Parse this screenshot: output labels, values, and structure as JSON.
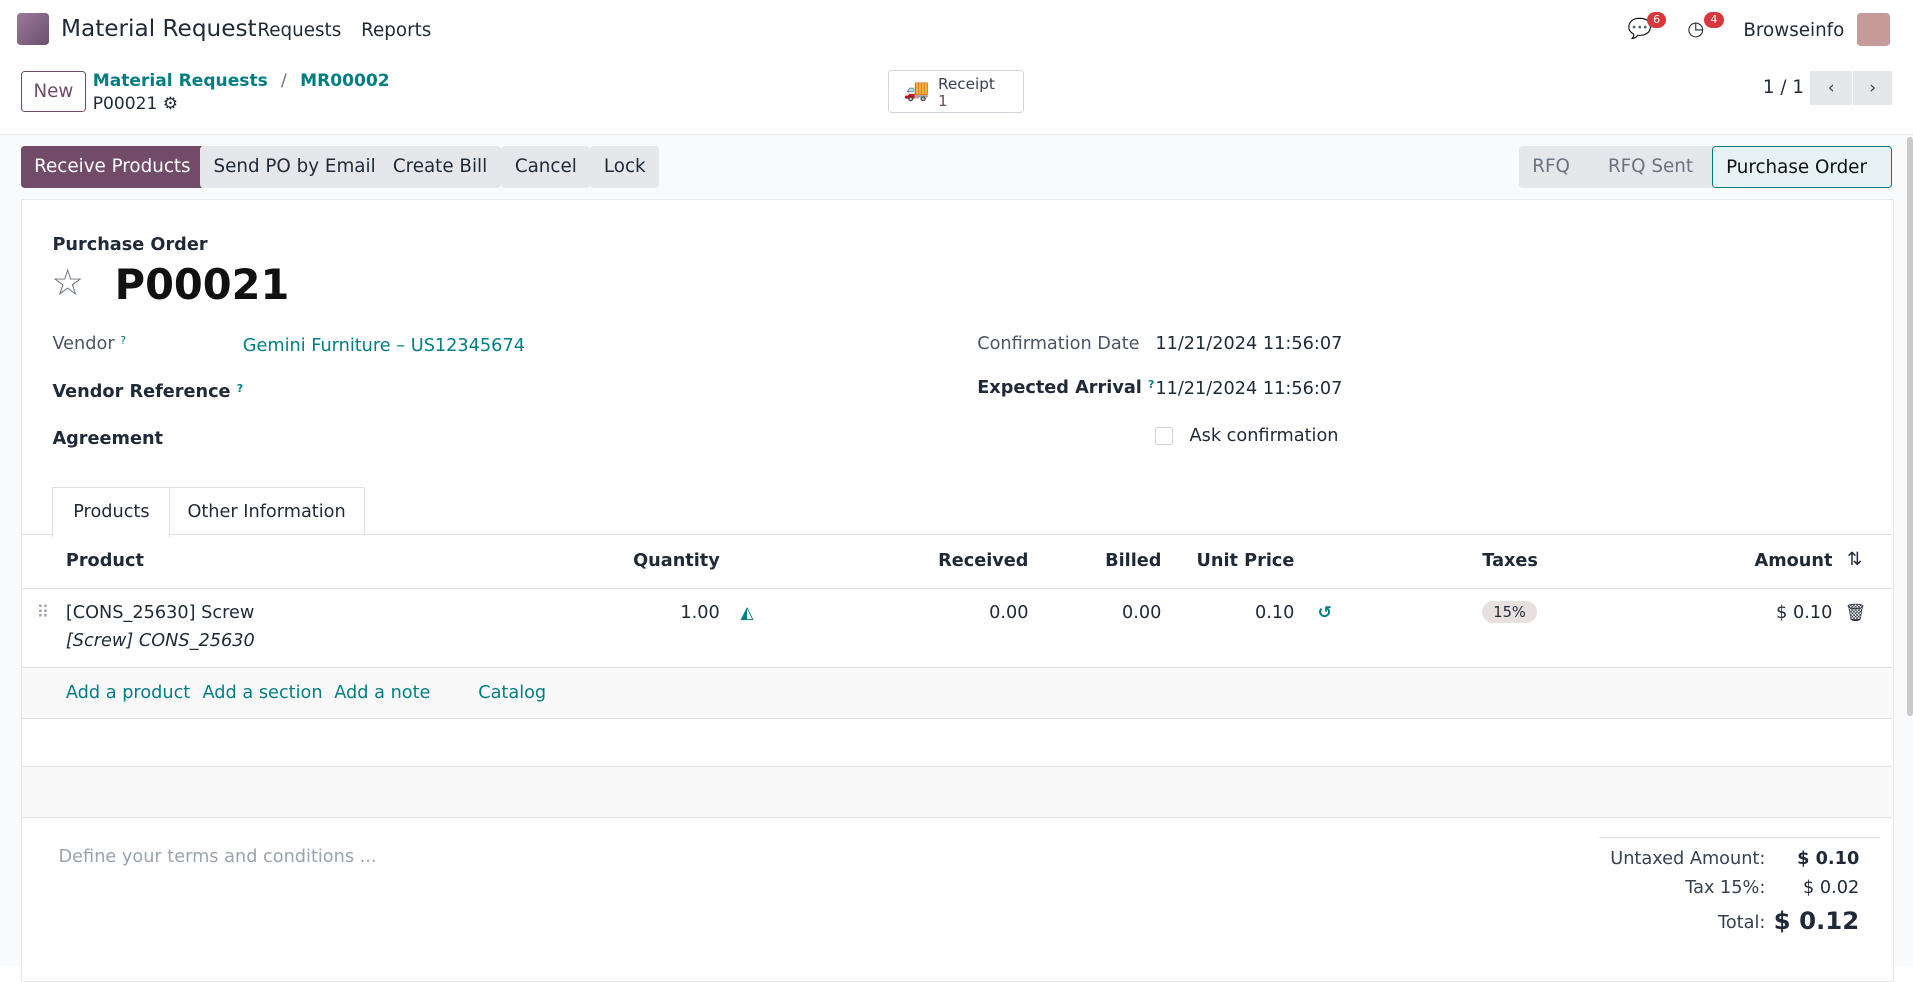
{
  "nav": {
    "app": "Material Request",
    "menus": [
      "Requests",
      "Reports"
    ],
    "messages_count": "6",
    "activities_count": "4",
    "user": "Browseinfo"
  },
  "control": {
    "new_label": "New",
    "breadcrumb": [
      "Material Requests",
      "MR00002"
    ],
    "record": "P00021",
    "receipt_label": "Receipt",
    "receipt_count": "1",
    "pager": "1 / 1"
  },
  "actions": [
    "Receive Products",
    "Send PO by Email",
    "Create Bill",
    "Cancel",
    "Lock"
  ],
  "status": {
    "steps": [
      "RFQ",
      "RFQ Sent",
      "Purchase Order"
    ],
    "active": "Purchase Order"
  },
  "form": {
    "type_label": "Purchase Order",
    "name": "P00021",
    "vendor_label": "Vendor",
    "vendor": "Gemini Furniture – US12345674",
    "vendor_ref_label": "Vendor Reference",
    "agreement_label": "Agreement",
    "confirmation_label": "Confirmation Date",
    "confirmation": "11/21/2024 11:56:07",
    "arrival_label": "Expected Arrival",
    "arrival": "11/21/2024 11:56:07",
    "ask_label": "Ask confirmation",
    "help": "?"
  },
  "tabs": [
    "Products",
    "Other Information"
  ],
  "table": {
    "headers": [
      "Product",
      "Quantity",
      "Received",
      "Billed",
      "Unit Price",
      "Taxes",
      "Amount"
    ],
    "rows": [
      {
        "product": "[CONS_25630] Screw",
        "description": "[Screw] CONS_25630",
        "quantity": "1.00",
        "received": "0.00",
        "billed": "0.00",
        "unit_price": "0.10",
        "taxes": "15%",
        "amount": "$ 0.10"
      }
    ],
    "add_links": [
      "Add a product",
      "Add a section",
      "Add a note",
      "Catalog"
    ]
  },
  "terms_placeholder": "Define your terms and conditions ...",
  "totals": {
    "untaxed_label": "Untaxed Amount:",
    "untaxed": "$ 0.10",
    "tax_label": "Tax 15%:",
    "tax": "$ 0.02",
    "total_label": "Total:",
    "total": "$ 0.12"
  },
  "colors": {
    "primary": "#714b67",
    "link": "#017e84",
    "badge": "#d9363e"
  }
}
